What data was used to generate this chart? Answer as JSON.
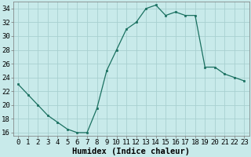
{
  "x": [
    0,
    1,
    2,
    3,
    4,
    5,
    6,
    7,
    8,
    9,
    10,
    11,
    12,
    13,
    14,
    15,
    16,
    17,
    18,
    19,
    20,
    21,
    22,
    23
  ],
  "y": [
    23,
    21.5,
    20,
    18.5,
    17.5,
    16.5,
    16,
    16,
    19.5,
    25,
    28,
    31,
    32,
    34,
    34.5,
    33,
    33.5,
    33,
    33,
    25.5,
    25.5,
    24.5,
    24,
    23.5
  ],
  "line_color": "#1a7060",
  "marker_color": "#1a7060",
  "bg_color": "#c8eaea",
  "grid_color": "#a8d0d0",
  "xlabel": "Humidex (Indice chaleur)",
  "ylim": [
    15.5,
    35
  ],
  "xlim": [
    -0.5,
    23.5
  ],
  "yticks": [
    16,
    18,
    20,
    22,
    24,
    26,
    28,
    30,
    32,
    34
  ],
  "xticks": [
    0,
    1,
    2,
    3,
    4,
    5,
    6,
    7,
    8,
    9,
    10,
    11,
    12,
    13,
    14,
    15,
    16,
    17,
    18,
    19,
    20,
    21,
    22,
    23
  ],
  "xlabel_fontsize": 7.5,
  "tick_fontsize": 6.5
}
